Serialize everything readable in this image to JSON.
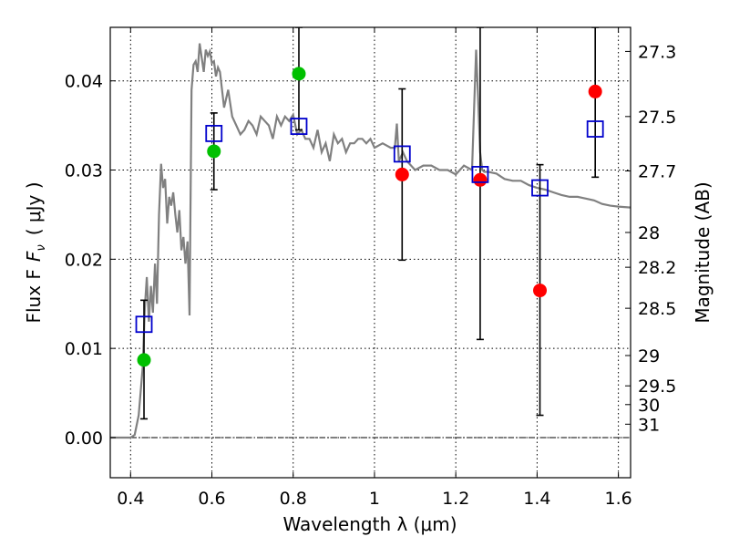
{
  "chart_data": {
    "type": "scatter",
    "title": "",
    "xlabel": "Wavelength  λ (μm)",
    "ylabel": "Flux  F",
    "ylabel_sub": "ν",
    "ylabel_unit": "( μJy )",
    "y2label": "Magnitude (AB)",
    "xlim": [
      0.35,
      1.63
    ],
    "ylim": [
      -0.0045,
      0.046
    ],
    "x_ticks": [
      {
        "value": 0.4,
        "label": "0.4"
      },
      {
        "value": 0.6,
        "label": "0.6"
      },
      {
        "value": 0.8,
        "label": "0.8"
      },
      {
        "value": 1.0,
        "label": "1"
      },
      {
        "value": 1.2,
        "label": "1.2"
      },
      {
        "value": 1.4,
        "label": "1.4"
      },
      {
        "value": 1.6,
        "label": "1.6"
      }
    ],
    "y_ticks": [
      {
        "value": 0.0,
        "label": "0.00"
      },
      {
        "value": 0.01,
        "label": "0.01"
      },
      {
        "value": 0.02,
        "label": "0.02"
      },
      {
        "value": 0.03,
        "label": "0.03"
      },
      {
        "value": 0.04,
        "label": "0.04"
      }
    ],
    "y2_ticks": [
      {
        "flux": 0.0433,
        "label": "27.3"
      },
      {
        "flux": 0.036,
        "label": "27.5"
      },
      {
        "flux": 0.0299,
        "label": "27.7"
      },
      {
        "flux": 0.023,
        "label": "28"
      },
      {
        "flux": 0.0191,
        "label": "28.2"
      },
      {
        "flux": 0.0145,
        "label": "28.5"
      },
      {
        "flux": 0.0092,
        "label": "29"
      },
      {
        "flux": 0.0058,
        "label": "29.5"
      },
      {
        "flux": 0.0037,
        "label": "30"
      },
      {
        "flux": 0.0015,
        "label": "31"
      }
    ],
    "grid": true,
    "model_spectrum": {
      "color": "#808080",
      "x": [
        0.35,
        0.4,
        0.41,
        0.42,
        0.43,
        0.435,
        0.44,
        0.445,
        0.45,
        0.455,
        0.46,
        0.465,
        0.47,
        0.475,
        0.48,
        0.485,
        0.49,
        0.495,
        0.5,
        0.505,
        0.51,
        0.515,
        0.52,
        0.525,
        0.53,
        0.535,
        0.54,
        0.545,
        0.55,
        0.555,
        0.56,
        0.565,
        0.57,
        0.58,
        0.585,
        0.59,
        0.595,
        0.6,
        0.605,
        0.61,
        0.615,
        0.62,
        0.63,
        0.64,
        0.65,
        0.66,
        0.67,
        0.68,
        0.69,
        0.7,
        0.71,
        0.72,
        0.73,
        0.74,
        0.75,
        0.76,
        0.77,
        0.78,
        0.79,
        0.8,
        0.81,
        0.82,
        0.83,
        0.84,
        0.85,
        0.86,
        0.87,
        0.88,
        0.89,
        0.9,
        0.91,
        0.92,
        0.93,
        0.94,
        0.95,
        0.96,
        0.97,
        0.98,
        0.99,
        1.0,
        1.02,
        1.04,
        1.05,
        1.055,
        1.06,
        1.07,
        1.08,
        1.1,
        1.12,
        1.14,
        1.16,
        1.18,
        1.2,
        1.22,
        1.24,
        1.245,
        1.25,
        1.255,
        1.26,
        1.265,
        1.27,
        1.28,
        1.3,
        1.32,
        1.34,
        1.36,
        1.38,
        1.4,
        1.42,
        1.44,
        1.46,
        1.48,
        1.5,
        1.52,
        1.54,
        1.56,
        1.58,
        1.6,
        1.63
      ],
      "y": [
        0.0,
        0.0,
        0.0003,
        0.0025,
        0.008,
        0.0145,
        0.018,
        0.013,
        0.017,
        0.014,
        0.0195,
        0.015,
        0.025,
        0.0307,
        0.028,
        0.029,
        0.024,
        0.027,
        0.026,
        0.0275,
        0.025,
        0.023,
        0.0255,
        0.021,
        0.0225,
        0.0195,
        0.022,
        0.0137,
        0.039,
        0.0418,
        0.0422,
        0.041,
        0.0442,
        0.041,
        0.0435,
        0.0428,
        0.0433,
        0.042,
        0.0422,
        0.0405,
        0.0415,
        0.041,
        0.037,
        0.039,
        0.036,
        0.035,
        0.034,
        0.0345,
        0.0355,
        0.035,
        0.034,
        0.036,
        0.0355,
        0.035,
        0.0335,
        0.036,
        0.035,
        0.036,
        0.0355,
        0.0362,
        0.034,
        0.0345,
        0.0335,
        0.0335,
        0.0325,
        0.0345,
        0.032,
        0.033,
        0.031,
        0.034,
        0.033,
        0.0335,
        0.032,
        0.033,
        0.033,
        0.0335,
        0.0335,
        0.033,
        0.0335,
        0.0325,
        0.033,
        0.0325,
        0.0325,
        0.0352,
        0.031,
        0.032,
        0.031,
        0.03,
        0.0305,
        0.0305,
        0.03,
        0.03,
        0.0295,
        0.0305,
        0.03,
        0.037,
        0.0435,
        0.038,
        0.032,
        0.03,
        0.0298,
        0.0298,
        0.0296,
        0.029,
        0.0288,
        0.0288,
        0.0283,
        0.028,
        0.0278,
        0.0275,
        0.0272,
        0.027,
        0.027,
        0.0268,
        0.0266,
        0.0262,
        0.026,
        0.0259,
        0.0258
      ]
    },
    "series": [
      {
        "name": "green points",
        "marker": "filled-circle",
        "color": "#00c000",
        "points": [
          {
            "x": 0.433,
            "y": 0.0087
          },
          {
            "x": 0.605,
            "y": 0.0321
          },
          {
            "x": 0.814,
            "y": 0.0408
          }
        ]
      },
      {
        "name": "red points",
        "marker": "filled-circle",
        "color": "#ff0000",
        "points": [
          {
            "x": 1.068,
            "y": 0.0295
          },
          {
            "x": 1.26,
            "y": 0.0289
          },
          {
            "x": 1.407,
            "y": 0.0165
          },
          {
            "x": 1.543,
            "y": 0.0388
          }
        ]
      },
      {
        "name": "model bands",
        "marker": "open-square",
        "color": "#0000cc",
        "points": [
          {
            "x": 0.433,
            "y": 0.0127,
            "err_lo": 0.0021,
            "err_hi": 0.0154
          },
          {
            "x": 0.605,
            "y": 0.0341,
            "err_lo": 0.0278,
            "err_hi": 0.0364
          },
          {
            "x": 0.814,
            "y": 0.0349,
            "err_lo": 0.0345,
            "err_hi": 0.046
          },
          {
            "x": 1.068,
            "y": 0.0318,
            "err_lo": 0.0199,
            "err_hi": 0.0391
          },
          {
            "x": 1.26,
            "y": 0.0295,
            "err_lo": 0.011,
            "err_hi": 0.046
          },
          {
            "x": 1.407,
            "y": 0.028,
            "err_lo": 0.0025,
            "err_hi": 0.0306
          },
          {
            "x": 1.543,
            "y": 0.0346,
            "err_lo": 0.0292,
            "err_hi": 0.046
          }
        ]
      }
    ]
  }
}
